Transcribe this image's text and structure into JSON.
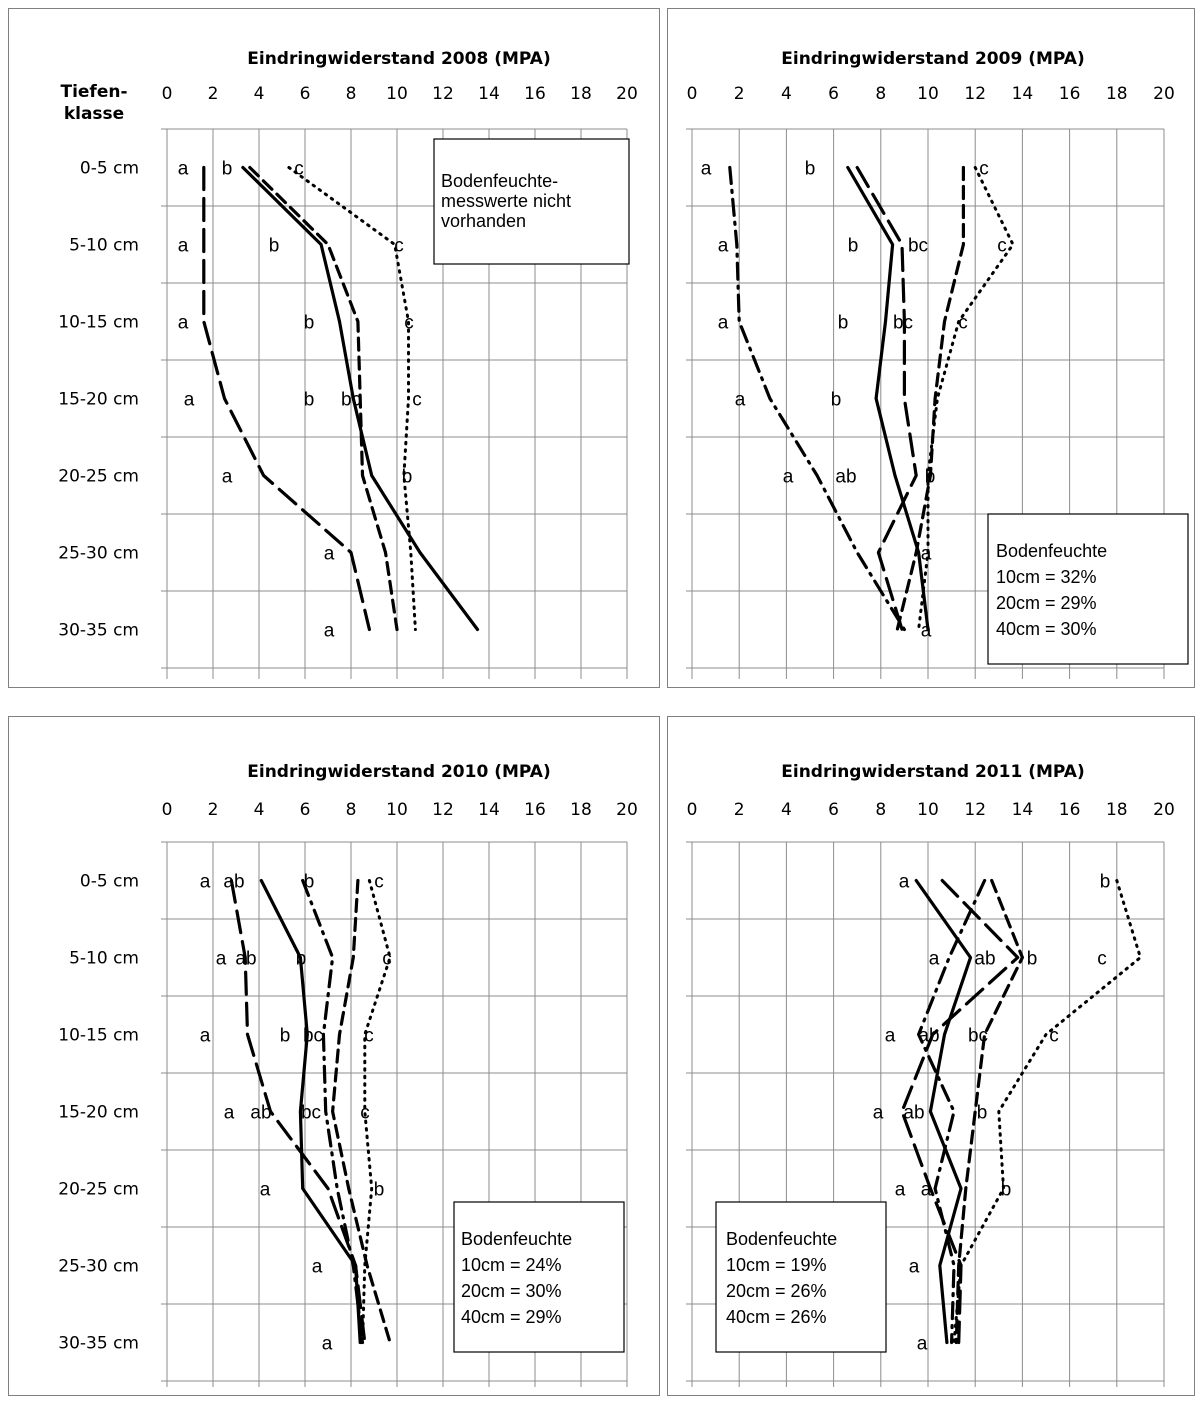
{
  "chart_data": [
    {
      "type": "line",
      "title": "Eindringwiderstand 2008 (MPA)",
      "ylabel": "Tiefen-\nklasse",
      "xlim": [
        0,
        20
      ],
      "xticks": [
        "0",
        "2",
        "4",
        "6",
        "8",
        "10",
        "12",
        "14",
        "16",
        "18",
        "20"
      ],
      "categories": [
        "0-5 cm",
        "5-10 cm",
        "10-15 cm",
        "15-20 cm",
        "20-25 cm",
        "25-30 cm",
        "30-35 cm"
      ],
      "grid": true,
      "annotation": [
        "Bodenfeuchte-",
        "messwerte nicht",
        "vorhanden"
      ],
      "series": [
        {
          "style": "solid",
          "values": [
            3.3,
            6.7,
            7.5,
            8.1,
            8.9,
            11.0,
            13.5
          ]
        },
        {
          "style": "dash",
          "values": [
            3.6,
            7.0,
            8.3,
            8.4,
            8.5,
            9.5,
            10.0
          ]
        },
        {
          "style": "longdash",
          "values": [
            1.6,
            1.6,
            1.6,
            2.5,
            4.2,
            8.0,
            8.8
          ]
        },
        {
          "style": "dot",
          "values": [
            5.3,
            9.9,
            10.5,
            10.5,
            10.3,
            10.6,
            10.8
          ]
        }
      ],
      "labels": [
        [
          "a",
          "b",
          "c"
        ],
        [
          "a",
          "b",
          "c"
        ],
        [
          "a",
          "b",
          "c"
        ],
        [
          "a",
          "b",
          "bc",
          "c"
        ],
        [
          "a",
          "b"
        ],
        [
          "a"
        ],
        [
          "a"
        ]
      ]
    },
    {
      "type": "line",
      "title": "Eindringwiderstand 2009 (MPA)",
      "xlim": [
        0,
        20
      ],
      "xticks": [
        "0",
        "2",
        "4",
        "6",
        "8",
        "10",
        "12",
        "14",
        "16",
        "18",
        "20"
      ],
      "categories": [
        "0-5 cm",
        "5-10 cm",
        "10-15 cm",
        "15-20 cm",
        "20-25 cm",
        "25-30 cm",
        "30-35 cm"
      ],
      "grid": true,
      "annotation": [
        "Bodenfeuchte",
        "10cm = 32%",
        "20cm = 29%",
        "40cm = 30%"
      ],
      "series": [
        {
          "style": "solid",
          "values": [
            6.6,
            8.5,
            8.2,
            7.8,
            8.6,
            9.6,
            10.0
          ]
        },
        {
          "style": "dash",
          "values": [
            11.5,
            11.5,
            10.7,
            10.3,
            10.1,
            9.5,
            8.7
          ]
        },
        {
          "style": "longdash",
          "values": [
            7.0,
            8.9,
            9.0,
            9.0,
            9.5,
            7.9,
            8.9
          ]
        },
        {
          "style": "dot",
          "values": [
            12.0,
            13.6,
            11.3,
            10.4,
            10.0,
            10.0,
            9.6
          ]
        },
        {
          "style": "dashdot",
          "values": [
            1.6,
            1.9,
            2.0,
            3.3,
            5.3,
            7.0,
            9.0
          ]
        }
      ],
      "labels": [
        [
          "a",
          "b",
          "c"
        ],
        [
          "a",
          "b",
          "bc",
          "c"
        ],
        [
          "a",
          "b",
          "bc",
          "c"
        ],
        [
          "a",
          "b"
        ],
        [
          "a",
          "ab",
          "b"
        ],
        [
          "a"
        ],
        [
          "a"
        ]
      ]
    },
    {
      "type": "line",
      "title": "Eindringwiderstand 2010 (MPA)",
      "xlim": [
        0,
        20
      ],
      "xticks": [
        "0",
        "2",
        "4",
        "6",
        "8",
        "10",
        "12",
        "14",
        "16",
        "18",
        "20"
      ],
      "categories": [
        "0-5 cm",
        "5-10 cm",
        "10-15 cm",
        "15-20 cm",
        "20-25 cm",
        "25-30 cm",
        "30-35 cm"
      ],
      "grid": true,
      "annotation": [
        "Bodenfeuchte",
        "10cm = 24%",
        "20cm = 30%",
        "40cm = 29%"
      ],
      "series": [
        {
          "style": "solid",
          "values": [
            4.1,
            5.8,
            6.1,
            5.8,
            5.9,
            8.2,
            8.4
          ]
        },
        {
          "style": "dash",
          "values": [
            8.3,
            8.1,
            7.5,
            7.2,
            7.9,
            8.7,
            9.7
          ]
        },
        {
          "style": "longdash",
          "values": [
            2.8,
            3.4,
            3.5,
            4.5,
            7.0,
            8.2,
            8.6
          ]
        },
        {
          "style": "dot",
          "values": [
            8.8,
            9.7,
            8.6,
            8.6,
            8.9,
            8.6,
            8.5
          ]
        },
        {
          "style": "dashdot",
          "values": [
            5.9,
            7.2,
            6.8,
            6.9,
            7.4,
            8.1,
            8.5
          ]
        }
      ],
      "labels": [
        [
          "a",
          "ab",
          "b",
          "c"
        ],
        [
          "a",
          "ab",
          "b",
          "c"
        ],
        [
          "a",
          "b",
          "bc",
          "c"
        ],
        [
          "a",
          "ab",
          "bc",
          "c"
        ],
        [
          "a",
          "b"
        ],
        [
          "a"
        ],
        [
          "a"
        ]
      ]
    },
    {
      "type": "line",
      "title": "Eindringwiderstand 2011 (MPA)",
      "xlim": [
        0,
        20
      ],
      "xticks": [
        "0",
        "2",
        "4",
        "6",
        "8",
        "10",
        "12",
        "14",
        "16",
        "18",
        "20"
      ],
      "categories": [
        "0-5 cm",
        "5-10 cm",
        "10-15 cm",
        "15-20 cm",
        "20-25 cm",
        "25-30 cm",
        "30-35 cm"
      ],
      "grid": true,
      "annotation": [
        "Bodenfeuchte",
        "10cm = 19%",
        "20cm = 26%",
        "40cm = 26%"
      ],
      "series": [
        {
          "style": "solid",
          "values": [
            9.5,
            11.8,
            10.7,
            10.1,
            11.4,
            10.5,
            10.8
          ]
        },
        {
          "style": "dash",
          "values": [
            12.7,
            14.0,
            12.4,
            12.0,
            11.6,
            11.3,
            11.2
          ]
        },
        {
          "style": "longdash",
          "values": [
            10.6,
            13.8,
            10.2,
            8.9,
            10.1,
            11.4,
            11.3
          ]
        },
        {
          "style": "dot",
          "values": [
            18.0,
            19.0,
            15.0,
            13.0,
            13.2,
            11.4,
            11.1
          ]
        },
        {
          "style": "dashdot",
          "values": [
            12.4,
            10.9,
            9.6,
            11.1,
            10.3,
            11.1,
            11.0
          ]
        }
      ],
      "labels": [
        [
          "a",
          "b"
        ],
        [
          "a",
          "ab",
          "b",
          "c"
        ],
        [
          "a",
          "ab",
          "bc",
          "c"
        ],
        [
          "a",
          "ab",
          "b"
        ],
        [
          "a",
          "a",
          "b"
        ],
        [
          "a"
        ],
        [
          "a"
        ]
      ]
    }
  ]
}
